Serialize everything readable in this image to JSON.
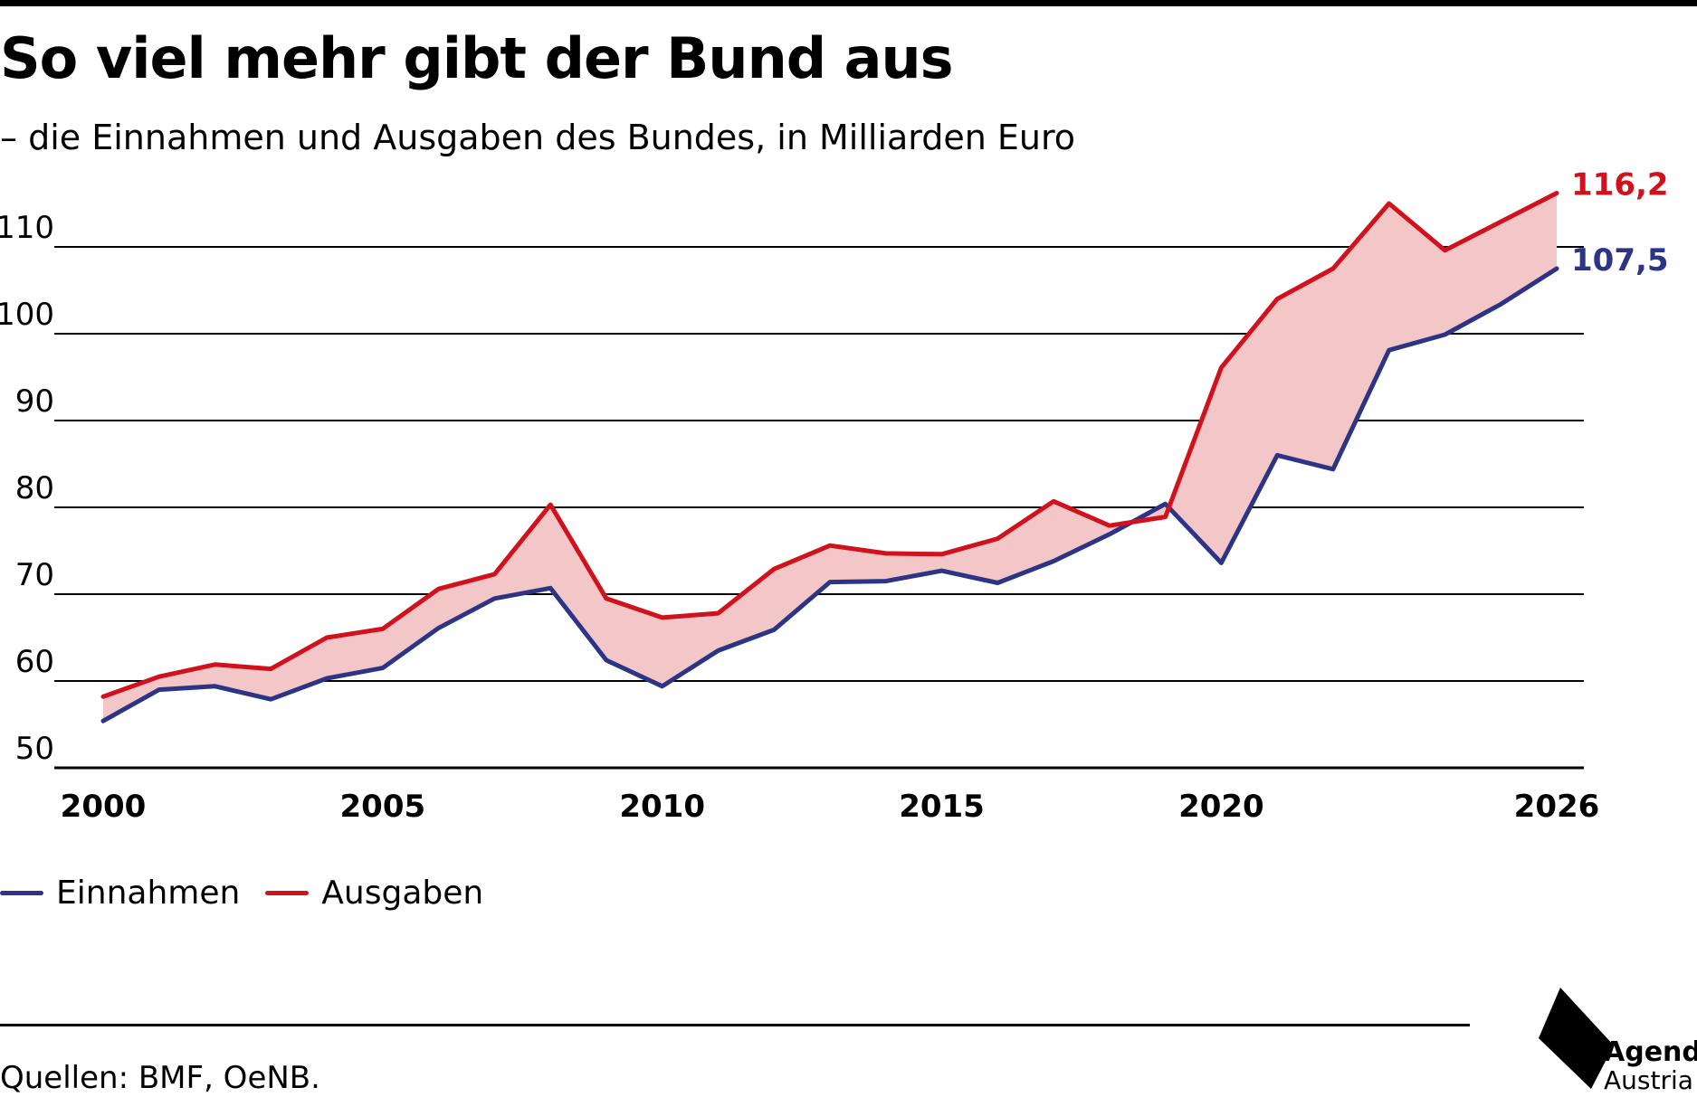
{
  "title": "So viel mehr gibt der Bund aus",
  "subtitle": "– die Einnahmen und Ausgaben des Bundes, in Milliarden Euro",
  "colors": {
    "einnahmen": "#2b3486",
    "ausgaben": "#d1111c",
    "gap_fill": "#f3c6c8",
    "grid": "#000000"
  },
  "legend": [
    {
      "label": "Einnahmen",
      "color": "#2b3486"
    },
    {
      "label": "Ausgaben",
      "color": "#d1111c"
    }
  ],
  "source": "Quellen: BMF, OeNB.",
  "logo": {
    "line1": "Agenda",
    "line2": "Austria"
  },
  "chart_data": {
    "type": "line",
    "x": [
      2000,
      2001,
      2002,
      2003,
      2004,
      2005,
      2006,
      2007,
      2008,
      2009,
      2010,
      2011,
      2012,
      2013,
      2014,
      2015,
      2016,
      2017,
      2018,
      2019,
      2020,
      2021,
      2022,
      2023,
      2024,
      2025,
      2026
    ],
    "series": [
      {
        "name": "Einnahmen",
        "color": "#2b3486",
        "values": [
          55.4,
          59.0,
          59.4,
          57.9,
          60.3,
          61.5,
          66.1,
          69.5,
          70.7,
          62.4,
          59.4,
          63.5,
          65.9,
          71.4,
          71.5,
          72.7,
          71.3,
          73.8,
          76.9,
          80.4,
          73.6,
          86.0,
          84.4,
          98.1,
          99.9,
          103.4,
          107.5
        ],
        "end_label": "107,5"
      },
      {
        "name": "Ausgaben",
        "color": "#d1111c",
        "values": [
          58.2,
          60.5,
          61.9,
          61.4,
          65.0,
          66.0,
          70.6,
          72.3,
          80.3,
          69.5,
          67.3,
          67.8,
          72.9,
          75.6,
          74.7,
          74.6,
          76.4,
          80.7,
          77.9,
          78.9,
          96.1,
          104.0,
          107.5,
          115.0,
          109.6,
          112.9,
          116.2
        ],
        "end_label": "116,2"
      }
    ],
    "y_ticks": [
      "50",
      "60",
      "70",
      "80",
      "90",
      "100",
      "110"
    ],
    "x_ticks": [
      "2000",
      "2005",
      "2010",
      "2015",
      "2020",
      "2026"
    ],
    "ylim": [
      50,
      116.2
    ],
    "xlim": [
      2000,
      2026
    ],
    "grid": "horizontal",
    "legend_position": "bottom-left"
  }
}
